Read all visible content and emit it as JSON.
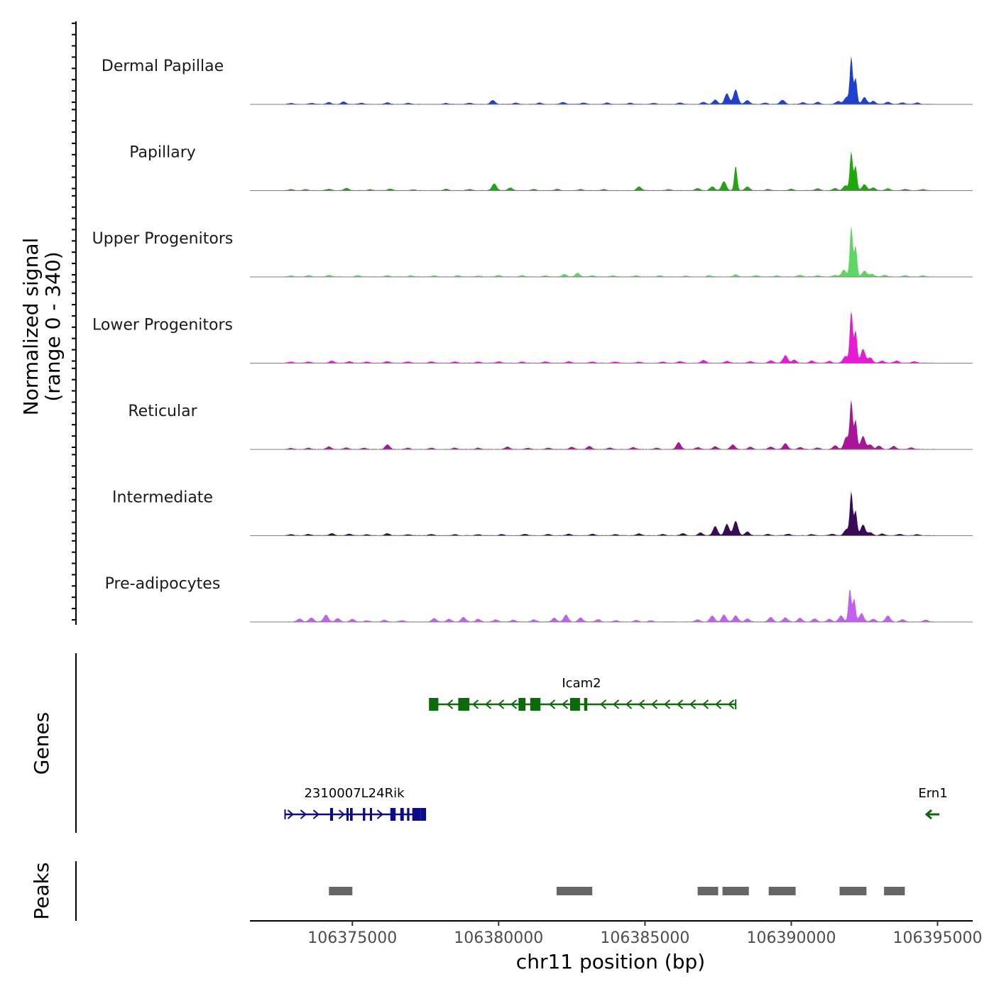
{
  "chart_data": {
    "type": "area",
    "title": "",
    "chromosome": "chr11",
    "xlabel": "chr11 position (bp)",
    "ylabel": "Normalized signal",
    "ylabel_range": "(range 0 - 340)",
    "xlim": [
      106371500,
      106396200
    ],
    "x_ticks": [
      106375000,
      106380000,
      106385000,
      106390000,
      106395000
    ],
    "x_tick_labels": [
      "106375000",
      "106380000",
      "106385000",
      "106390000",
      "106395000"
    ],
    "signal_range": [
      0,
      340
    ],
    "signal_domain": [
      106372700,
      106394900
    ],
    "tracks": [
      {
        "name": "Dermal Papillae",
        "color": "#1f3fcf",
        "peaks": [
          [
            106372900,
            6
          ],
          [
            106373600,
            7
          ],
          [
            106374200,
            13
          ],
          [
            106374700,
            16
          ],
          [
            106375300,
            8
          ],
          [
            106376200,
            11
          ],
          [
            106376900,
            8
          ],
          [
            106378200,
            7
          ],
          [
            106379000,
            8
          ],
          [
            106379800,
            26
          ],
          [
            106380600,
            9
          ],
          [
            106381400,
            9
          ],
          [
            106382200,
            12
          ],
          [
            106382900,
            9
          ],
          [
            106383700,
            9
          ],
          [
            106384500,
            8
          ],
          [
            106385300,
            7
          ],
          [
            106386200,
            9
          ],
          [
            106387000,
            14
          ],
          [
            106387400,
            28
          ],
          [
            106387800,
            70
          ],
          [
            106388100,
            95
          ],
          [
            106388500,
            25
          ],
          [
            106389100,
            9
          ],
          [
            106389700,
            28
          ],
          [
            106390400,
            12
          ],
          [
            106390900,
            14
          ],
          [
            106391600,
            20
          ],
          [
            106391880,
            45
          ],
          [
            106392050,
            308
          ],
          [
            106392200,
            170
          ],
          [
            106392500,
            45
          ],
          [
            106392800,
            20
          ],
          [
            106393300,
            14
          ],
          [
            106393800,
            10
          ],
          [
            106394300,
            10
          ]
        ]
      },
      {
        "name": "Papillary",
        "color": "#1fa80d",
        "peaks": [
          [
            106372900,
            7
          ],
          [
            106373400,
            7
          ],
          [
            106374200,
            10
          ],
          [
            106374800,
            15
          ],
          [
            106375600,
            7
          ],
          [
            106376300,
            10
          ],
          [
            106377100,
            6
          ],
          [
            106378200,
            9
          ],
          [
            106379000,
            8
          ],
          [
            106379850,
            45
          ],
          [
            106380400,
            18
          ],
          [
            106381200,
            8
          ],
          [
            106382000,
            9
          ],
          [
            106382800,
            7
          ],
          [
            106383600,
            8
          ],
          [
            106384800,
            25
          ],
          [
            106385800,
            7
          ],
          [
            106386800,
            14
          ],
          [
            106387300,
            25
          ],
          [
            106387700,
            60
          ],
          [
            106388100,
            160
          ],
          [
            106388500,
            25
          ],
          [
            106389200,
            8
          ],
          [
            106390000,
            10
          ],
          [
            106390900,
            12
          ],
          [
            106391500,
            14
          ],
          [
            106391850,
            32
          ],
          [
            106392050,
            252
          ],
          [
            106392200,
            160
          ],
          [
            106392500,
            40
          ],
          [
            106392800,
            18
          ],
          [
            106393300,
            12
          ],
          [
            106393900,
            9
          ],
          [
            106394500,
            8
          ]
        ]
      },
      {
        "name": "Upper Progenitors",
        "color": "#5ed666",
        "peaks": [
          [
            106372900,
            6
          ],
          [
            106373500,
            8
          ],
          [
            106374200,
            11
          ],
          [
            106375200,
            8
          ],
          [
            106376200,
            8
          ],
          [
            106377000,
            7
          ],
          [
            106377800,
            7
          ],
          [
            106378600,
            8
          ],
          [
            106379300,
            6
          ],
          [
            106380000,
            9
          ],
          [
            106380800,
            8
          ],
          [
            106381600,
            7
          ],
          [
            106382250,
            16
          ],
          [
            106382700,
            24
          ],
          [
            106383200,
            8
          ],
          [
            106383900,
            7
          ],
          [
            106384700,
            7
          ],
          [
            106385500,
            7
          ],
          [
            106386400,
            6
          ],
          [
            106387200,
            8
          ],
          [
            106388100,
            14
          ],
          [
            106388800,
            8
          ],
          [
            106389500,
            7
          ],
          [
            106390300,
            11
          ],
          [
            106390900,
            8
          ],
          [
            106391500,
            10
          ],
          [
            106391800,
            45
          ],
          [
            106392050,
            332
          ],
          [
            106392200,
            200
          ],
          [
            106392500,
            38
          ],
          [
            106392750,
            18
          ],
          [
            106393200,
            10
          ],
          [
            106393900,
            8
          ],
          [
            106394500,
            7
          ]
        ]
      },
      {
        "name": "Lower Progenitors",
        "color": "#e61bd3",
        "peaks": [
          [
            106372900,
            8
          ],
          [
            106373500,
            8
          ],
          [
            106374300,
            14
          ],
          [
            106374900,
            10
          ],
          [
            106375500,
            8
          ],
          [
            106376200,
            10
          ],
          [
            106376900,
            8
          ],
          [
            106377700,
            8
          ],
          [
            106378500,
            8
          ],
          [
            106379300,
            8
          ],
          [
            106380000,
            9
          ],
          [
            106380800,
            8
          ],
          [
            106381600,
            8
          ],
          [
            106382400,
            9
          ],
          [
            106383200,
            8
          ],
          [
            106384000,
            8
          ],
          [
            106384800,
            7
          ],
          [
            106385600,
            8
          ],
          [
            106386200,
            11
          ],
          [
            106387000,
            18
          ],
          [
            106387800,
            12
          ],
          [
            106388600,
            10
          ],
          [
            106389300,
            16
          ],
          [
            106389800,
            50
          ],
          [
            106390100,
            20
          ],
          [
            106390700,
            14
          ],
          [
            106391300,
            12
          ],
          [
            106391850,
            45
          ],
          [
            106392050,
            350
          ],
          [
            106392200,
            210
          ],
          [
            106392450,
            90
          ],
          [
            106392700,
            35
          ],
          [
            106393100,
            14
          ],
          [
            106393600,
            14
          ],
          [
            106394200,
            10
          ]
        ]
      },
      {
        "name": "Reticular",
        "color": "#a81599",
        "peaks": [
          [
            106372900,
            7
          ],
          [
            106373500,
            8
          ],
          [
            106374200,
            17
          ],
          [
            106374800,
            10
          ],
          [
            106375400,
            8
          ],
          [
            106376200,
            30
          ],
          [
            106376900,
            8
          ],
          [
            106377700,
            8
          ],
          [
            106378500,
            9
          ],
          [
            106379300,
            8
          ],
          [
            106380300,
            16
          ],
          [
            106381000,
            8
          ],
          [
            106381700,
            8
          ],
          [
            106382500,
            14
          ],
          [
            106383100,
            20
          ],
          [
            106383800,
            10
          ],
          [
            106384600,
            12
          ],
          [
            106385400,
            8
          ],
          [
            106386150,
            45
          ],
          [
            106386800,
            12
          ],
          [
            106387400,
            18
          ],
          [
            106388000,
            30
          ],
          [
            106388600,
            15
          ],
          [
            106389300,
            16
          ],
          [
            106389800,
            38
          ],
          [
            106390300,
            12
          ],
          [
            106390900,
            10
          ],
          [
            106391500,
            25
          ],
          [
            106391880,
            80
          ],
          [
            106392050,
            315
          ],
          [
            106392200,
            190
          ],
          [
            106392450,
            85
          ],
          [
            106392700,
            30
          ],
          [
            106393000,
            22
          ],
          [
            106393500,
            20
          ],
          [
            106394100,
            10
          ]
        ]
      },
      {
        "name": "Intermediate",
        "color": "#380a58",
        "peaks": [
          [
            106372900,
            7
          ],
          [
            106373500,
            8
          ],
          [
            106374300,
            14
          ],
          [
            106374900,
            10
          ],
          [
            106375500,
            7
          ],
          [
            106376200,
            14
          ],
          [
            106376900,
            7
          ],
          [
            106377700,
            8
          ],
          [
            106378500,
            7
          ],
          [
            106379300,
            7
          ],
          [
            106380100,
            8
          ],
          [
            106380900,
            9
          ],
          [
            106381700,
            8
          ],
          [
            106382400,
            10
          ],
          [
            106383200,
            10
          ],
          [
            106384000,
            8
          ],
          [
            106384800,
            12
          ],
          [
            106385600,
            8
          ],
          [
            106386300,
            14
          ],
          [
            106386900,
            18
          ],
          [
            106387400,
            60
          ],
          [
            106387800,
            75
          ],
          [
            106388100,
            95
          ],
          [
            106388500,
            25
          ],
          [
            106389200,
            9
          ],
          [
            106389900,
            10
          ],
          [
            106390700,
            8
          ],
          [
            106391400,
            10
          ],
          [
            106391880,
            40
          ],
          [
            106392050,
            285
          ],
          [
            106392200,
            160
          ],
          [
            106392450,
            70
          ],
          [
            106392700,
            20
          ],
          [
            106393100,
            12
          ],
          [
            106393700,
            9
          ],
          [
            106394300,
            7
          ]
        ]
      },
      {
        "name": "Pre-adipocytes",
        "color": "#c15ff0",
        "peaks": [
          [
            106373200,
            20
          ],
          [
            106373600,
            26
          ],
          [
            106374100,
            45
          ],
          [
            106374500,
            22
          ],
          [
            106375000,
            18
          ],
          [
            106375500,
            8
          ],
          [
            106376100,
            12
          ],
          [
            106376700,
            8
          ],
          [
            106377800,
            22
          ],
          [
            106378300,
            18
          ],
          [
            106378800,
            30
          ],
          [
            106379300,
            18
          ],
          [
            106379900,
            14
          ],
          [
            106380500,
            12
          ],
          [
            106381200,
            14
          ],
          [
            106381900,
            25
          ],
          [
            106382300,
            45
          ],
          [
            106382800,
            26
          ],
          [
            106383400,
            16
          ],
          [
            106384000,
            8
          ],
          [
            106384700,
            10
          ],
          [
            106385200,
            8
          ],
          [
            106386800,
            15
          ],
          [
            106387300,
            40
          ],
          [
            106387700,
            45
          ],
          [
            106388100,
            40
          ],
          [
            106388500,
            20
          ],
          [
            106389300,
            30
          ],
          [
            106389800,
            28
          ],
          [
            106390300,
            24
          ],
          [
            106390800,
            20
          ],
          [
            106391300,
            18
          ],
          [
            106391700,
            40
          ],
          [
            106392000,
            215
          ],
          [
            106392150,
            150
          ],
          [
            106392400,
            55
          ],
          [
            106392800,
            18
          ],
          [
            106393300,
            40
          ],
          [
            106393800,
            15
          ],
          [
            106394600,
            12
          ]
        ]
      }
    ],
    "genes": [
      {
        "name": "Icam2",
        "strand": "-",
        "color": "#0b6b0b",
        "start": 106377700,
        "end": 106388100,
        "exons": [
          [
            106377620,
            106377940
          ],
          [
            106378620,
            106379000
          ],
          [
            106380680,
            106380920
          ],
          [
            106381080,
            106381430
          ],
          [
            106382440,
            106382780
          ],
          [
            106382920,
            106383030
          ]
        ]
      },
      {
        "name": "2310007L24Rik",
        "strand": "+",
        "color": "#0a0a8a",
        "start": 106372700,
        "end": 106377300,
        "exons": [
          [
            106374240,
            106374340
          ],
          [
            106374800,
            106374860
          ],
          [
            106374920,
            106375010
          ],
          [
            106375360,
            106375440
          ],
          [
            106375600,
            106375660
          ],
          [
            106376300,
            106376480
          ],
          [
            106376640,
            106376760
          ],
          [
            106376870,
            106376950
          ],
          [
            106377050,
            106377340
          ],
          [
            106377340,
            106377520
          ]
        ]
      },
      {
        "name": "Ern1",
        "strand": "-",
        "color": "#0b6b0b",
        "start": 106394650,
        "end": 106395050,
        "exons": []
      }
    ],
    "peaks": [
      [
        106374200,
        106375000
      ],
      [
        106381980,
        106383200
      ],
      [
        106386800,
        106387500
      ],
      [
        106387650,
        106388550
      ],
      [
        106389230,
        106390150
      ],
      [
        106391650,
        106392570
      ],
      [
        106393170,
        106393880
      ]
    ],
    "panel_labels": {
      "genes": "Genes",
      "peaks": "Peaks"
    }
  }
}
